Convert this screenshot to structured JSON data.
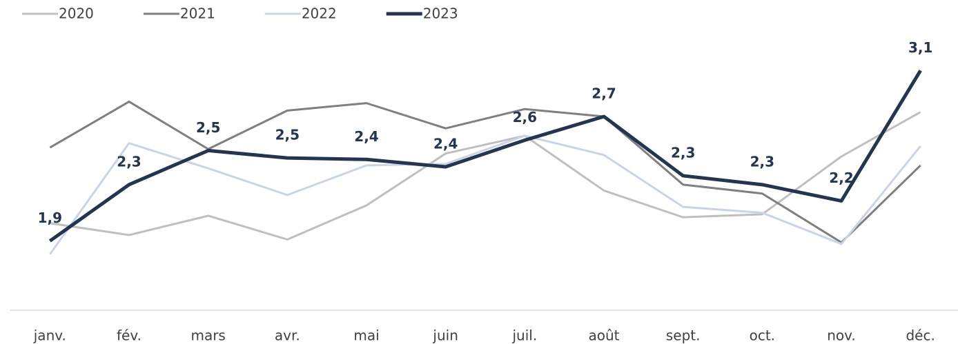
{
  "chart_data": {
    "type": "line",
    "categories": [
      "janv.",
      "fév.",
      "mars",
      "avr.",
      "mai",
      "juin",
      "juil.",
      "août",
      "sept.",
      "oct.",
      "nov.",
      "déc."
    ],
    "series": [
      {
        "name": "2020",
        "color": "#bfbfbf",
        "values": [
          2.02,
          1.94,
          2.07,
          1.91,
          2.14,
          2.49,
          2.61,
          2.24,
          2.06,
          2.08,
          2.47,
          2.77
        ]
      },
      {
        "name": "2021",
        "color": "#7f7f7f",
        "values": [
          2.53,
          2.84,
          2.52,
          2.78,
          2.83,
          2.66,
          2.79,
          2.74,
          2.28,
          2.22,
          1.89,
          2.41
        ]
      },
      {
        "name": "2022",
        "color": "#c9d5e6",
        "values": [
          1.81,
          2.56,
          2.39,
          2.21,
          2.41,
          2.42,
          2.61,
          2.48,
          2.13,
          2.09,
          1.88,
          2.54
        ]
      },
      {
        "name": "2023",
        "color": "#233550",
        "values": [
          1.9,
          2.28,
          2.51,
          2.46,
          2.45,
          2.4,
          2.58,
          2.74,
          2.34,
          2.28,
          2.17,
          3.05
        ],
        "value_labels": [
          "1,9",
          "2,3",
          "2,5",
          "2,5",
          "2,4",
          "2,4",
          "2,6",
          "2,7",
          "2,3",
          "2,3",
          "2,2",
          "3,1"
        ]
      }
    ],
    "ylim": [
      1.4,
      3.5
    ],
    "legend": "top-left"
  }
}
